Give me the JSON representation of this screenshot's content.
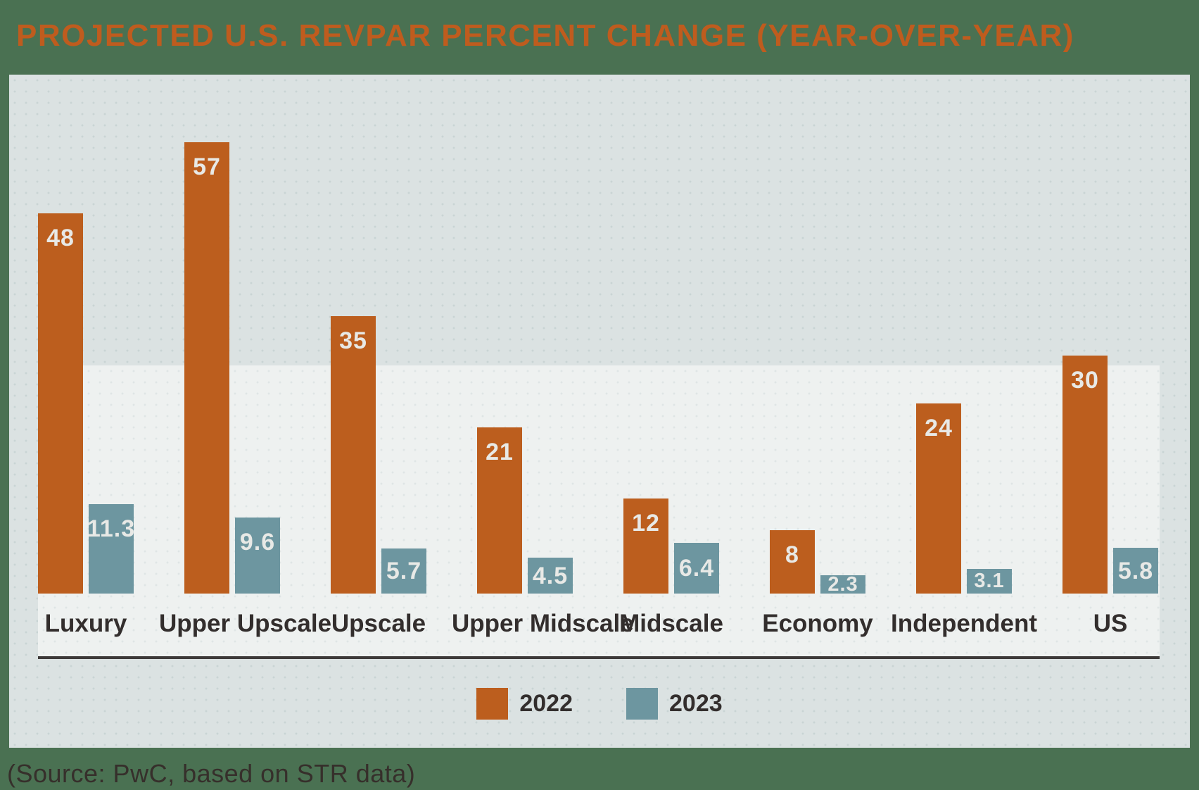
{
  "title": "PROJECTED U.S. REVPAR PERCENT CHANGE (YEAR-OVER-YEAR)",
  "source_note": "(Source: PwC, based on STR data)",
  "colors": {
    "background_green": "#4a7152",
    "panel_gray": "#dbe2e2",
    "plot_band_gray": "#eef1f0",
    "title_orange": "#bf5c1e",
    "series_2022_orange": "#bc5e1e",
    "series_2023_teal": "#6d96a0",
    "category_text": "#332e2d",
    "value_label_text": "#e8e9e6",
    "baseline_rule": "#3d3a39"
  },
  "legend": [
    {
      "label": "2022",
      "color": "#bc5e1e"
    },
    {
      "label": "2023",
      "color": "#6d96a0"
    }
  ],
  "chart_data": {
    "type": "bar",
    "title": "PROJECTED U.S. REVPAR PERCENT CHANGE (YEAR-OVER-YEAR)",
    "categories": [
      "Luxury",
      "Upper Upscale",
      "Upscale",
      "Upper Midscale",
      "Midscale",
      "Economy",
      "Independent",
      "US"
    ],
    "series": [
      {
        "name": "2022",
        "color": "#bc5e1e",
        "values": [
          48,
          57,
          35,
          21,
          12,
          8,
          24,
          30
        ]
      },
      {
        "name": "2023",
        "color": "#6d96a0",
        "values": [
          11.3,
          9.6,
          5.7,
          4.5,
          6.4,
          2.3,
          3.1,
          5.8
        ]
      }
    ],
    "xlabel": "",
    "ylabel": "",
    "ylim": [
      0,
      65
    ],
    "grid": false,
    "axes_shown": false,
    "value_labels": "inside-top-of-bar",
    "legend_position": "bottom-center"
  }
}
